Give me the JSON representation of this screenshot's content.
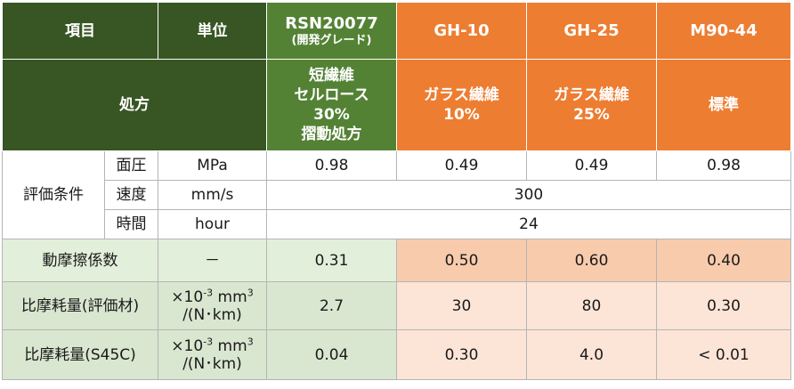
{
  "header": {
    "item": "項目",
    "unit": "単位",
    "rsn_main": "RSN20077",
    "rsn_sub": "(開発グレード)",
    "gh10": "GH-10",
    "gh25": "GH-25",
    "m9044": "M90-44"
  },
  "formula": {
    "label": "処方",
    "rsn_l1": "短繊維",
    "rsn_l2": "セルロース",
    "rsn_l3": "30%",
    "rsn_l4": "摺動処方",
    "gh10_l1": "ガラス繊維",
    "gh10_l2": "10%",
    "gh25_l1": "ガラス繊維",
    "gh25_l2": "25%",
    "m9044": "標準"
  },
  "conditions": {
    "label": "評価条件",
    "pressure": {
      "name": "面圧",
      "unit": "MPa",
      "rsn": "0.98",
      "gh10": "0.49",
      "gh25": "0.49",
      "m9044": "0.98"
    },
    "speed": {
      "name": "速度",
      "unit": "mm/s",
      "value": "300"
    },
    "time": {
      "name": "時間",
      "unit": "hour",
      "value": "24"
    }
  },
  "friction": {
    "label": "動摩擦係数",
    "unit": "－",
    "rsn": "0.31",
    "gh10": "0.50",
    "gh25": "0.60",
    "m9044": "0.40"
  },
  "wear_material": {
    "label": "比摩耗量(評価材)",
    "unit_l1a": "×10",
    "unit_exp1": "-3",
    "unit_l1b": " mm",
    "unit_exp2": "3",
    "unit_l2": "/(N･km)",
    "rsn": "2.7",
    "gh10": "30",
    "gh25": "80",
    "m9044": "0.30"
  },
  "wear_s45c": {
    "label": "比摩耗量(S45C)",
    "unit_l1a": "×10",
    "unit_exp1": "-3",
    "unit_l1b": " mm",
    "unit_exp2": "3",
    "unit_l2": "/(N･km)",
    "rsn": "0.04",
    "gh10": "0.30",
    "gh25": "4.0",
    "m9044": "< 0.01"
  },
  "colors": {
    "dark_green": "#375623",
    "green": "#548235",
    "orange": "#ed7d31",
    "light_green": "#e2efda",
    "light_orange": "#f8cbad",
    "pale_orange": "#fce4d6"
  }
}
